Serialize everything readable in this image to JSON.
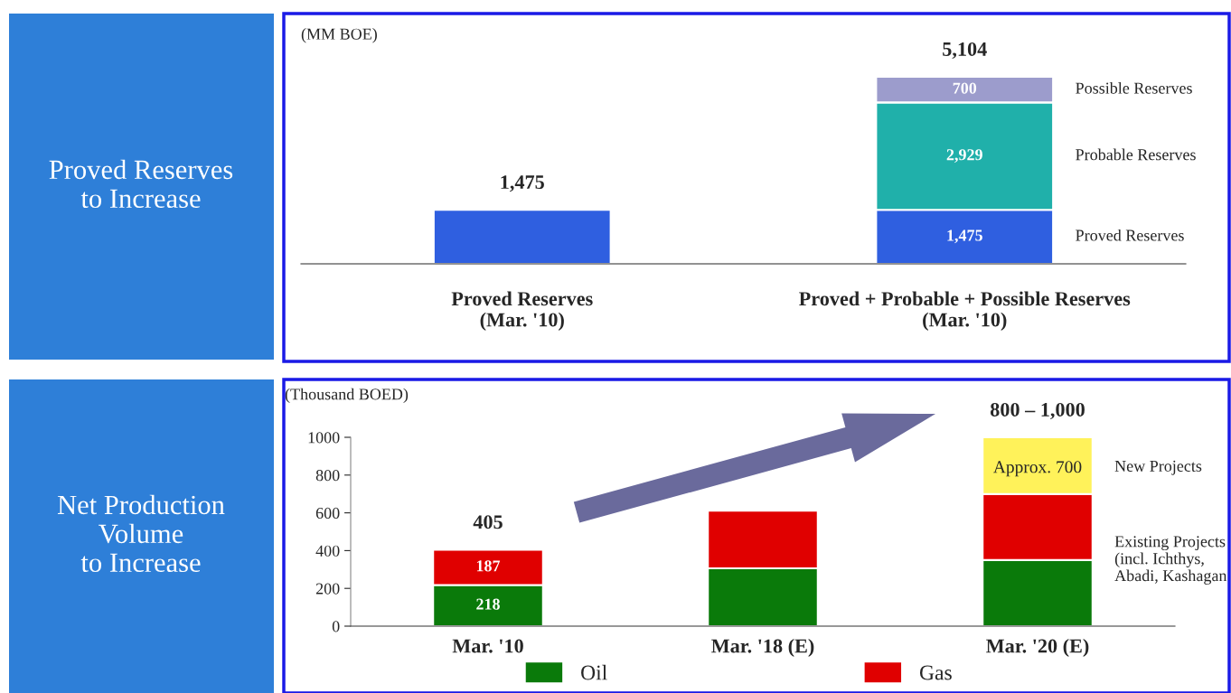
{
  "chart_data": [
    {
      "type": "bar",
      "title": "Proved Reserves\nto Increase",
      "ylabel": "(MM BOE)",
      "stacked": true,
      "categories": [
        "Proved Reserves\n(Mar. '10)",
        "Proved + Probable + Possible Reserves\n(Mar. '10)"
      ],
      "series": [
        {
          "name": "Proved Reserves",
          "color": "#2f5fe0",
          "values": [
            1475,
            1475
          ],
          "value_labels": [
            null,
            "1,475"
          ]
        },
        {
          "name": "Probable Reserves",
          "color": "#20b0aa",
          "values": [
            null,
            2929
          ],
          "value_labels": [
            null,
            "2,929"
          ]
        },
        {
          "name": "Possible Reserves",
          "color": "#9c9ccc",
          "values": [
            null,
            700
          ],
          "value_labels": [
            null,
            "700"
          ]
        }
      ],
      "totals": [
        "1,475",
        "5,104"
      ]
    },
    {
      "type": "bar",
      "title": "Net Production\nVolume\nto Increase",
      "ylabel": "(Thousand BOED)",
      "stacked": true,
      "categories": [
        "Mar. '10",
        "Mar. '18 (E)",
        "Mar. '20 (E)"
      ],
      "series": [
        {
          "name": "Oil",
          "color": "#0a7a0a",
          "values": [
            218,
            306,
            350
          ],
          "value_labels": [
            "218",
            null,
            null
          ]
        },
        {
          "name": "Gas",
          "color": "#e00000",
          "values": [
            187,
            306,
            350
          ],
          "value_labels": [
            "187",
            null,
            null
          ]
        },
        {
          "color": "#fff25a",
          "values": [
            null,
            null,
            300
          ]
        }
      ],
      "totals": [
        "405",
        null,
        "800 – 1,000"
      ],
      "ylim": [
        0,
        1000
      ],
      "yticks": [
        0,
        200,
        400,
        600,
        800,
        1000
      ],
      "legend": "bottom",
      "annotations": [
        "Approx. 700",
        "New Projects",
        "Existing Projects\n(incl. Ichthys,\nAbadi, Kashagan"
      ]
    }
  ]
}
